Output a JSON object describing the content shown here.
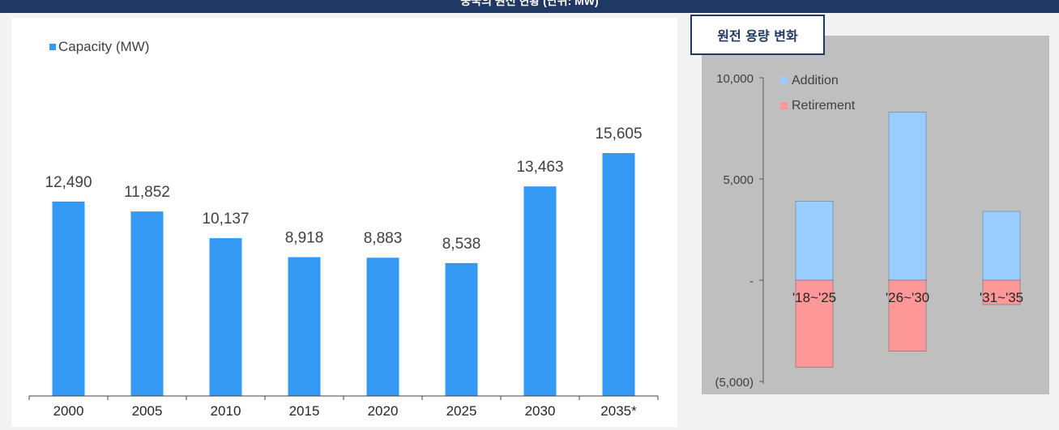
{
  "header": {
    "title": "중국의 원전 현황 (단위: MW)"
  },
  "chart_data": [
    {
      "type": "bar",
      "legend": [
        "Capacity (MW)"
      ],
      "legend_placement": "top-left",
      "categories": [
        "2000",
        "2005",
        "2010",
        "2015",
        "2020",
        "2025",
        "2030",
        "2035*"
      ],
      "series": [
        {
          "name": "Capacity (MW)",
          "values": [
            12490,
            11852,
            10137,
            8918,
            8883,
            8538,
            13463,
            15605
          ]
        }
      ],
      "data_labels": [
        "12,490",
        "11,852",
        "10,137",
        "8,918",
        "8,883",
        "8,538",
        "13,463",
        "15,605"
      ],
      "color": "#3399f3"
    },
    {
      "type": "bar",
      "title": "원전 용량 변화",
      "legend_placement": "top-left",
      "categories": [
        "'18~'25",
        "'26~'30",
        "'31~'35"
      ],
      "series": [
        {
          "name": "Addition",
          "values": [
            3900,
            8300,
            3400
          ],
          "color": "#99ccff"
        },
        {
          "name": "Retirement",
          "values": [
            -4300,
            -3500,
            -1200
          ],
          "color": "#ff9999"
        }
      ],
      "ylim": [
        -5000,
        10000
      ],
      "yticks": [
        -5000,
        0,
        5000,
        10000
      ],
      "ytick_labels": [
        "(5,000)",
        "-",
        "5,000",
        "10,000"
      ],
      "grid": false
    }
  ]
}
